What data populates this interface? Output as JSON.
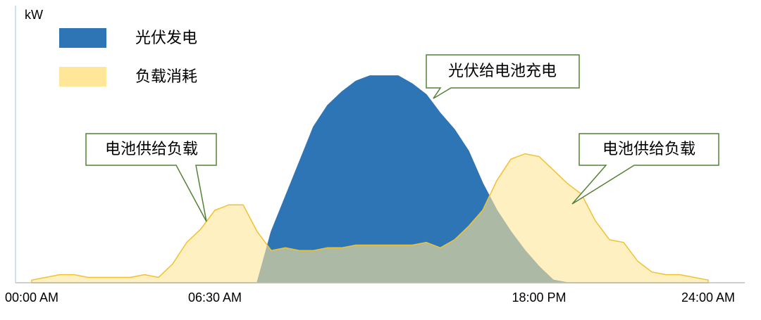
{
  "chart_data": {
    "type": "area",
    "y_label": "kW",
    "x": [
      0,
      0.5,
      1,
      1.5,
      2,
      2.5,
      3,
      3.5,
      4,
      4.5,
      5,
      5.5,
      6,
      6.5,
      7,
      7.5,
      8,
      8.5,
      9,
      9.5,
      10,
      10.5,
      11,
      11.5,
      12,
      12.5,
      13,
      13.5,
      14,
      14.5,
      15,
      15.5,
      16,
      16.5,
      17,
      17.5,
      18,
      18.5,
      19,
      19.5,
      20,
      20.5,
      21,
      21.5,
      22,
      22.5,
      23,
      23.5,
      24
    ],
    "series": [
      {
        "name": "光伏发电",
        "color": "#2e75b6",
        "values": [
          0,
          0,
          0,
          0,
          0,
          0,
          0,
          0,
          0,
          0,
          0,
          0,
          0,
          0,
          0,
          0,
          0,
          19,
          32,
          45,
          58,
          66,
          71,
          75,
          77,
          77,
          77,
          74,
          70,
          63,
          57,
          49,
          37,
          27,
          19,
          12,
          6,
          1,
          0,
          0,
          0,
          0,
          0,
          0,
          0,
          0,
          0,
          0,
          0
        ]
      },
      {
        "name": "负载消耗",
        "color": "#ffe699",
        "values": [
          1,
          2,
          3,
          3,
          2,
          2,
          2,
          2,
          3,
          2,
          7,
          15,
          20,
          27,
          29,
          29,
          19,
          12,
          13,
          12,
          12,
          13,
          13,
          14,
          14,
          14,
          14,
          14,
          15,
          13,
          16,
          21,
          27,
          38,
          46,
          48,
          47,
          42,
          37,
          33,
          23,
          16,
          15,
          8,
          4,
          3,
          3,
          2,
          1
        ]
      }
    ],
    "xlim": [
      -0.575,
      25.25
    ],
    "ylim": [
      0,
      100
    ],
    "xticks": [
      {
        "value": 0,
        "label": "00:00 AM"
      },
      {
        "value": 6.5,
        "label": "06:30 AM"
      },
      {
        "value": 18,
        "label": "18:00 PM"
      },
      {
        "value": 24,
        "label": "24:00 AM"
      }
    ],
    "annotations": [
      "光伏给电池充电",
      "电池供给负载",
      "电池供给负载"
    ]
  }
}
